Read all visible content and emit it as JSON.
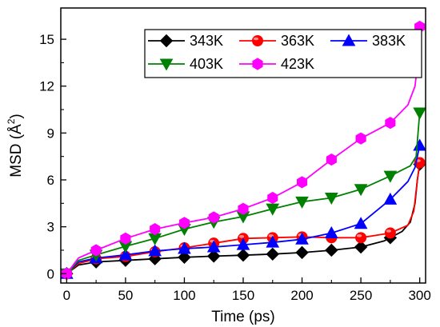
{
  "chart_data": {
    "type": "line",
    "xlabel": "Time (ps)",
    "ylabel_main": "MSD (",
    "ylabel_unit": "Å",
    "ylabel_sup": "2",
    "ylabel_close": ")",
    "xlim": [
      -5,
      305
    ],
    "ylim": [
      -0.6,
      17.0
    ],
    "xticks": [
      0,
      50,
      100,
      150,
      200,
      250,
      300
    ],
    "yticks": [
      0,
      3,
      6,
      9,
      12,
      15
    ],
    "xtick_labels": [
      "0",
      "50",
      "100",
      "150",
      "200",
      "250",
      "300"
    ],
    "ytick_labels": [
      "0",
      "3",
      "6",
      "9",
      "12",
      "15"
    ],
    "grid": false,
    "legend_position": "top-right",
    "series": [
      {
        "name": "343K",
        "color": "#000000",
        "marker": "diamond",
        "x": [
          0,
          25,
          50,
          75,
          100,
          125,
          150,
          175,
          200,
          225,
          250,
          275,
          300
        ],
        "y": [
          0.0,
          0.75,
          0.85,
          0.95,
          1.05,
          1.12,
          1.18,
          1.25,
          1.35,
          1.5,
          1.7,
          2.3,
          7.0
        ],
        "line": {
          "x": [
            0,
            10,
            25,
            50,
            75,
            100,
            125,
            150,
            175,
            200,
            225,
            250,
            270,
            285,
            292,
            296,
            298,
            300
          ],
          "y": [
            0.0,
            0.55,
            0.75,
            0.85,
            0.95,
            1.05,
            1.12,
            1.18,
            1.25,
            1.35,
            1.5,
            1.7,
            2.1,
            2.7,
            3.3,
            4.5,
            6.0,
            7.0
          ]
        }
      },
      {
        "name": "363K",
        "color": "#ff0000",
        "marker": "circle",
        "x": [
          0,
          25,
          50,
          75,
          100,
          125,
          150,
          175,
          200,
          225,
          250,
          275,
          300
        ],
        "y": [
          0.0,
          0.95,
          1.1,
          1.4,
          1.65,
          1.95,
          2.25,
          2.3,
          2.35,
          2.3,
          2.3,
          2.6,
          7.1
        ],
        "line": {
          "x": [
            0,
            10,
            25,
            50,
            75,
            100,
            125,
            150,
            175,
            200,
            225,
            250,
            275,
            290,
            295,
            298,
            300
          ],
          "y": [
            0.0,
            0.65,
            0.95,
            1.1,
            1.4,
            1.65,
            1.95,
            2.25,
            2.3,
            2.35,
            2.3,
            2.3,
            2.6,
            3.1,
            4.0,
            6.0,
            7.1
          ]
        }
      },
      {
        "name": "383K",
        "color": "#0000ff",
        "marker": "triangle-up",
        "x": [
          0,
          25,
          50,
          75,
          100,
          125,
          150,
          175,
          200,
          225,
          250,
          275,
          300
        ],
        "y": [
          0.0,
          1.0,
          1.2,
          1.45,
          1.6,
          1.7,
          1.85,
          2.0,
          2.2,
          2.6,
          3.2,
          4.75,
          8.2
        ],
        "line": {
          "x": [
            0,
            10,
            25,
            50,
            75,
            100,
            125,
            150,
            175,
            200,
            225,
            250,
            275,
            290,
            296,
            300
          ],
          "y": [
            0.0,
            0.75,
            1.0,
            1.2,
            1.45,
            1.6,
            1.7,
            1.85,
            2.0,
            2.2,
            2.6,
            3.2,
            4.75,
            5.9,
            6.8,
            8.2
          ]
        }
      },
      {
        "name": "403K",
        "color": "#008000",
        "marker": "triangle-down",
        "x": [
          0,
          25,
          50,
          75,
          100,
          125,
          150,
          175,
          200,
          225,
          250,
          275,
          300
        ],
        "y": [
          0.0,
          1.2,
          1.75,
          2.25,
          2.85,
          3.3,
          3.65,
          4.15,
          4.6,
          4.85,
          5.4,
          6.25,
          10.3
        ],
        "line": {
          "x": [
            0,
            10,
            25,
            50,
            75,
            100,
            125,
            150,
            175,
            200,
            225,
            250,
            275,
            292,
            297,
            300
          ],
          "y": [
            0.0,
            0.85,
            1.2,
            1.75,
            2.25,
            2.85,
            3.3,
            3.65,
            4.15,
            4.6,
            4.85,
            5.4,
            6.25,
            6.9,
            7.5,
            10.3
          ]
        }
      },
      {
        "name": "423K",
        "color": "#ff00ff",
        "marker": "hexagon",
        "x": [
          0,
          25,
          50,
          75,
          100,
          125,
          150,
          175,
          200,
          225,
          250,
          275,
          300
        ],
        "y": [
          0.0,
          1.5,
          2.25,
          2.85,
          3.25,
          3.6,
          4.15,
          4.85,
          5.85,
          7.3,
          8.65,
          9.65,
          15.8
        ],
        "line": {
          "x": [
            0,
            10,
            25,
            50,
            75,
            100,
            125,
            150,
            175,
            200,
            225,
            250,
            275,
            290,
            296,
            299,
            300
          ],
          "y": [
            0.0,
            1.0,
            1.5,
            2.25,
            2.85,
            3.25,
            3.6,
            4.15,
            4.85,
            5.85,
            7.3,
            8.65,
            9.65,
            10.8,
            12.0,
            14.0,
            15.8
          ]
        }
      }
    ]
  }
}
